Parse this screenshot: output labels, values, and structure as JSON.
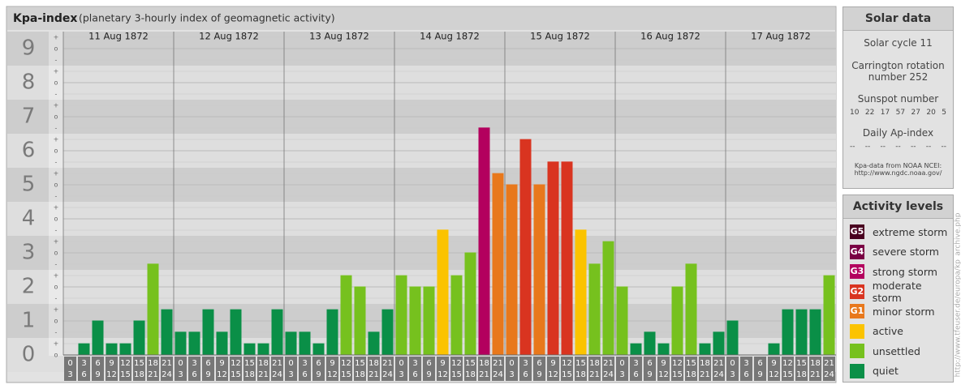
{
  "chart_data": {
    "type": "bar",
    "title": "Kpa-index",
    "subtitle": "(planetary 3-hourly index of geomagnetic activity)",
    "days": [
      "11 Aug 1872",
      "12 Aug 1872",
      "13 Aug 1872",
      "14 Aug 1872",
      "15 Aug 1872",
      "16 Aug 1872",
      "17 Aug 1872"
    ],
    "interval_labels": [
      [
        "0",
        "3"
      ],
      [
        "3",
        "6"
      ],
      [
        "6",
        "9"
      ],
      [
        "9",
        "12"
      ],
      [
        "12",
        "15"
      ],
      [
        "15",
        "18"
      ],
      [
        "18",
        "21"
      ],
      [
        "21",
        "24"
      ]
    ],
    "values": [
      0,
      0.33,
      1,
      0.33,
      0.33,
      1,
      2.67,
      1.33,
      0.67,
      0.67,
      1.33,
      0.67,
      1.33,
      0.33,
      0.33,
      1.33,
      0.67,
      0.67,
      0.33,
      1.33,
      2.33,
      2,
      0.67,
      1.33,
      2.33,
      2,
      2,
      3.67,
      2.33,
      3,
      6.67,
      5.33,
      5,
      6.33,
      5,
      5.67,
      5.67,
      3.67,
      2.67,
      3.33,
      2,
      0.33,
      0.67,
      0.33,
      2,
      2.67,
      0.33,
      0.67,
      1,
      0,
      0,
      0.33,
      1.33,
      1.33,
      1.33,
      2.33
    ],
    "colors": [
      "#0a8f47",
      "#0a8f47",
      "#0a8f47",
      "#0a8f47",
      "#0a8f47",
      "#0a8f47",
      "#76c11e",
      "#0a8f47",
      "#0a8f47",
      "#0a8f47",
      "#0a8f47",
      "#0a8f47",
      "#0a8f47",
      "#0a8f47",
      "#0a8f47",
      "#0a8f47",
      "#0a8f47",
      "#0a8f47",
      "#0a8f47",
      "#0a8f47",
      "#76c11e",
      "#76c11e",
      "#0a8f47",
      "#0a8f47",
      "#76c11e",
      "#76c11e",
      "#76c11e",
      "#fbc300",
      "#76c11e",
      "#76c11e",
      "#b3005e",
      "#e8781c",
      "#e8781c",
      "#d93420",
      "#e8781c",
      "#d93420",
      "#d93420",
      "#fbc300",
      "#76c11e",
      "#76c11e",
      "#76c11e",
      "#0a8f47",
      "#0a8f47",
      "#0a8f47",
      "#76c11e",
      "#76c11e",
      "#0a8f47",
      "#0a8f47",
      "#0a8f47",
      "#0a8f47",
      "#0a8f47",
      "#0a8f47",
      "#0a8f47",
      "#0a8f47",
      "#0a8f47",
      "#76c11e"
    ],
    "ylim": [
      -0.5,
      9.5
    ],
    "yticks": [
      0,
      1,
      2,
      3,
      4,
      5,
      6,
      7,
      8,
      9
    ],
    "sub_labels": {
      "minus": "-",
      "zero": "o",
      "plus": "+"
    }
  },
  "solar_data": {
    "title": "Solar data",
    "cycle": "Solar cycle 11",
    "carrington": "Carrington rotation number 252",
    "sunspot_title": "Sunspot number",
    "sunspots": [
      "10",
      "22",
      "17",
      "57",
      "27",
      "20",
      "5"
    ],
    "ap_title": "Daily Ap-index",
    "ap": [
      "--",
      "--",
      "--",
      "--",
      "--",
      "--",
      "--"
    ],
    "source": "Kpa-data from NOAA NCEI:",
    "source_url": "http://www.ngdc.noaa.gov/"
  },
  "activity_levels": {
    "title": "Activity levels",
    "items": [
      {
        "code": "G5",
        "name": "extreme storm",
        "color": "#4a0020"
      },
      {
        "code": "G4",
        "name": "severe storm",
        "color": "#7a0044"
      },
      {
        "code": "G3",
        "name": "strong storm",
        "color": "#b3005e"
      },
      {
        "code": "G2",
        "name": "moderate storm",
        "color": "#d93420"
      },
      {
        "code": "G1",
        "name": "minor storm",
        "color": "#e8781c"
      },
      {
        "name": "active",
        "color": "#fbc300"
      },
      {
        "name": "unsettled",
        "color": "#76c11e"
      },
      {
        "name": "quiet",
        "color": "#0a8f47"
      }
    ]
  },
  "archive_url": "http://www.tfeuser.de/europa/kp_archive.php"
}
